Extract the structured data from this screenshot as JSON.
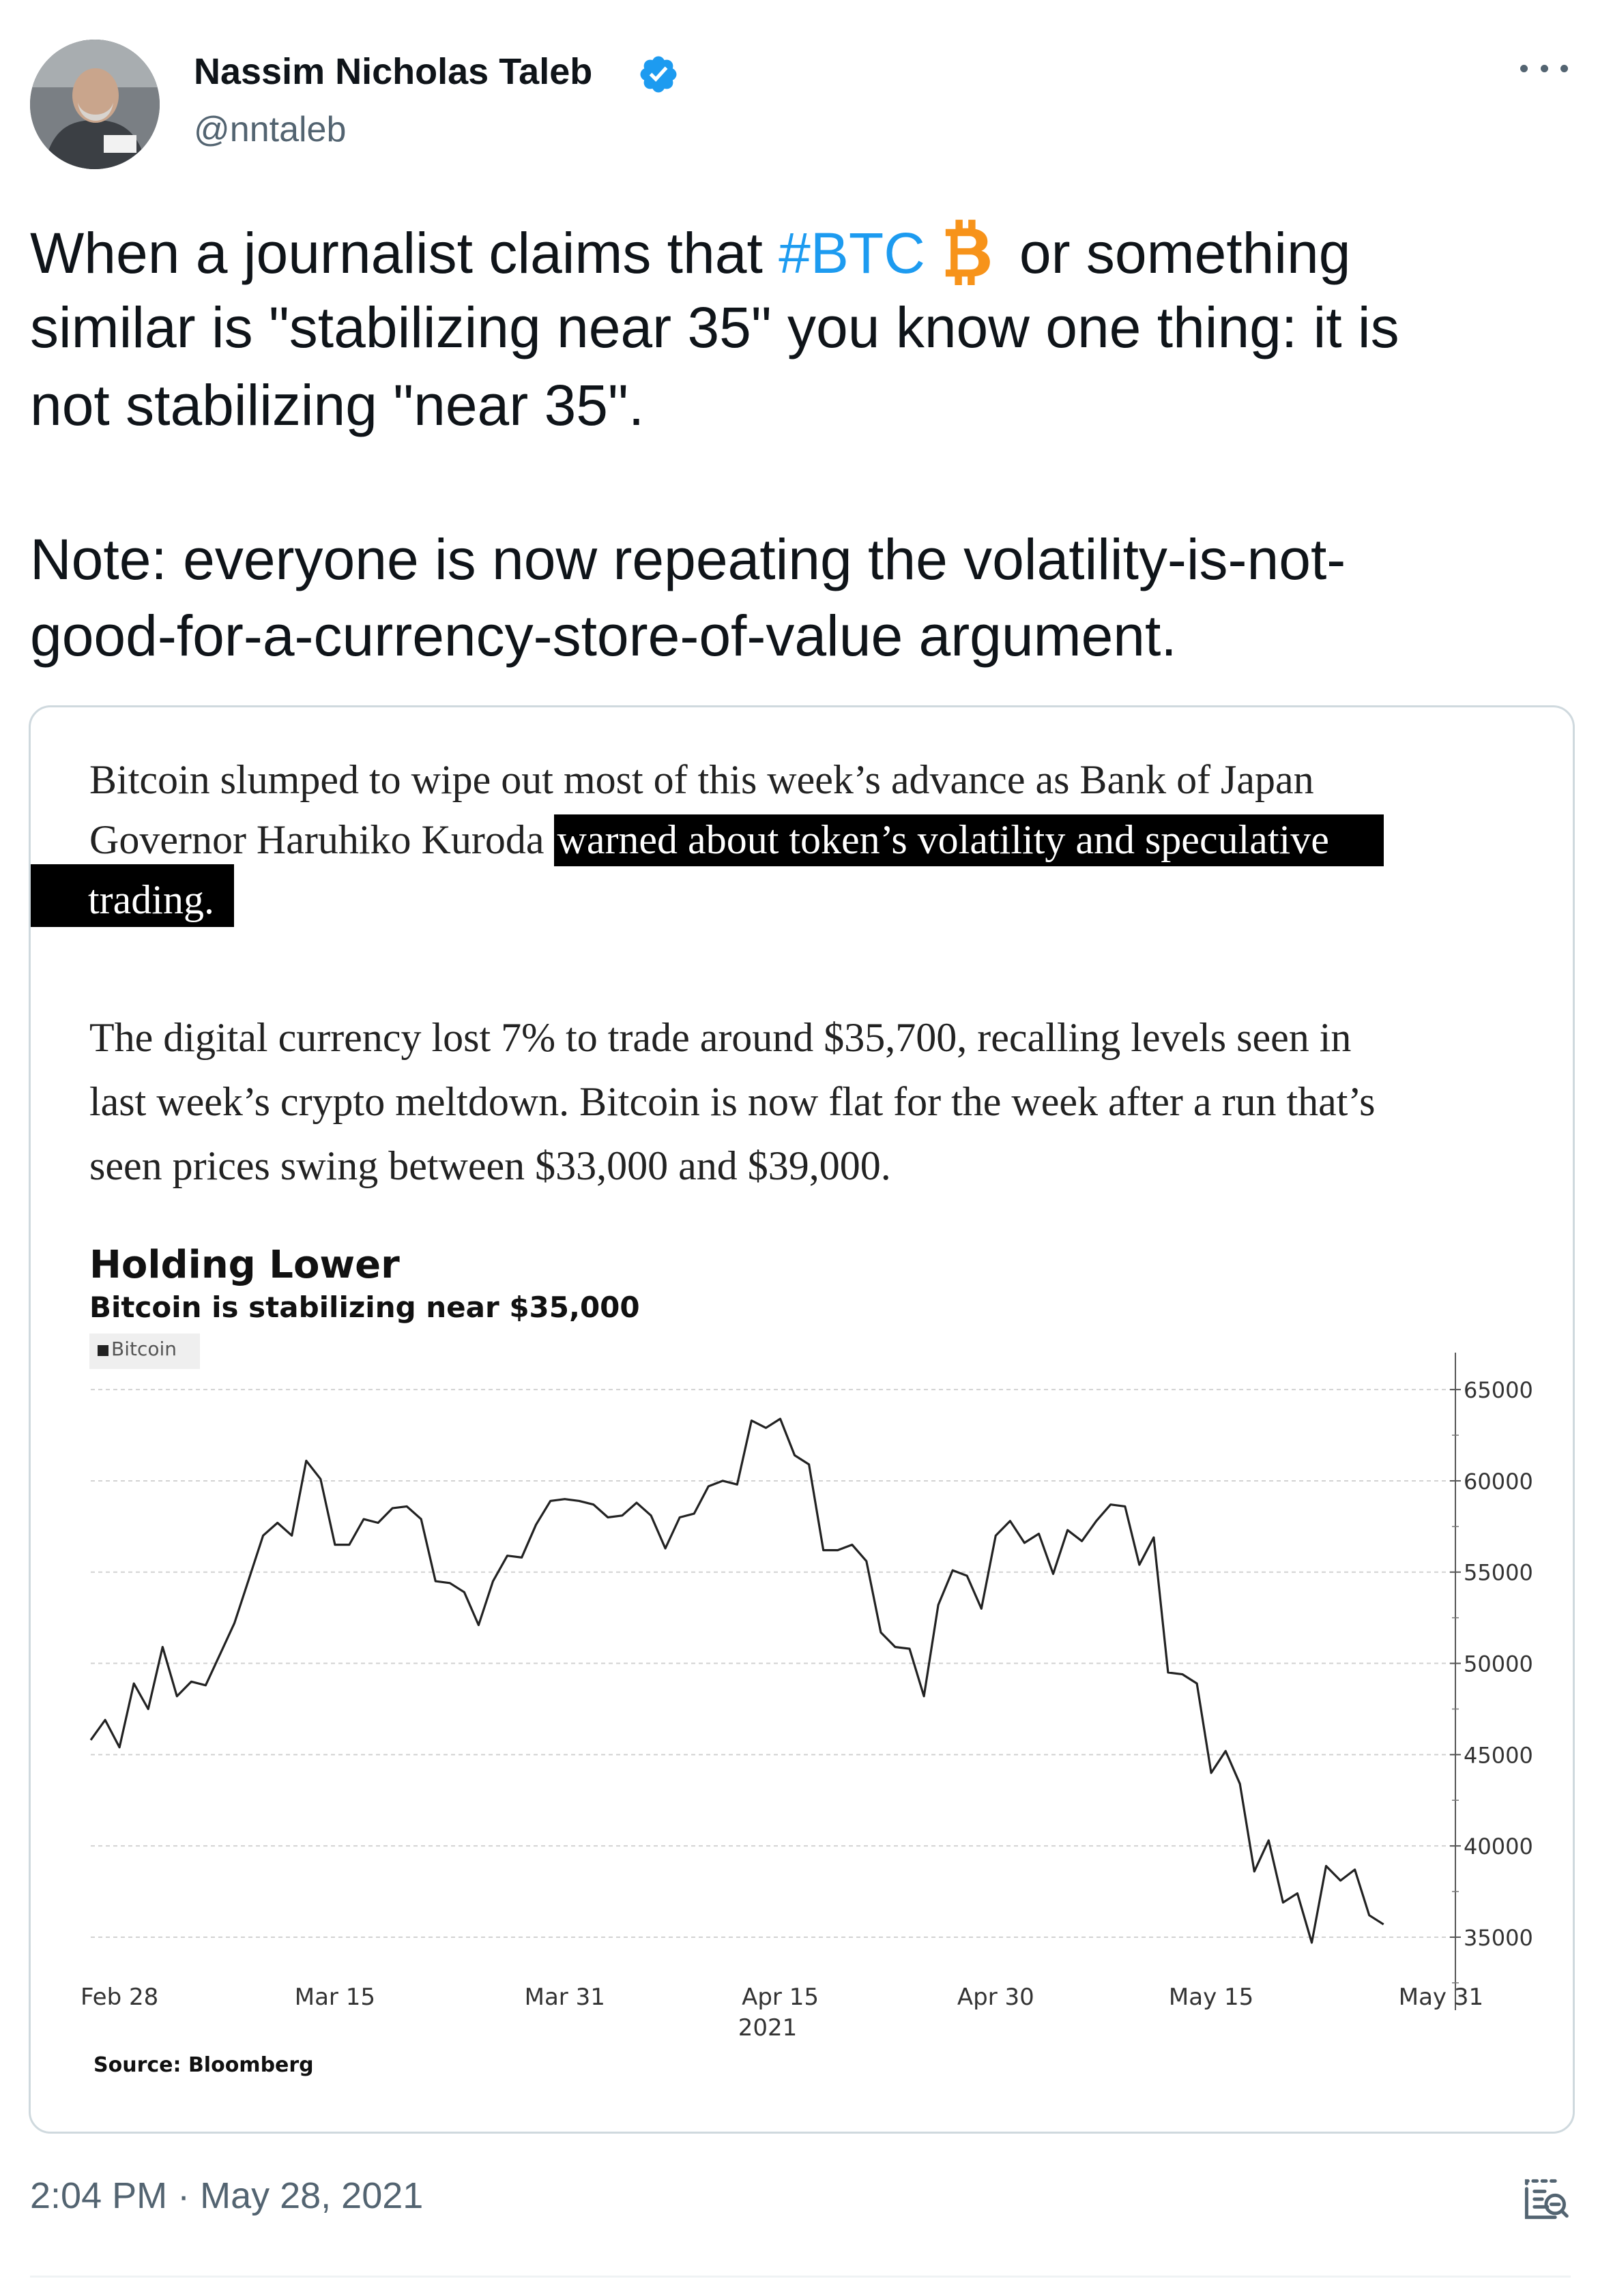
{
  "author": {
    "name": "Nassim Nicholas Taleb",
    "handle": "@nntaleb",
    "verified": true,
    "avatar": "avatar-photo"
  },
  "tweet": {
    "line1_before": "When a journalist claims that ",
    "hashtag": "#BTC",
    "line1_after": "or something",
    "line2": "similar is \"stabilizing near 35\" you know one thing: it is",
    "line3": "not stabilizing \"near 35\".",
    "line4": "Note: everyone is now repeating the volatility-is-not-",
    "line5": "good-for-a-currency-store-of-value argument."
  },
  "article": {
    "p1_line1": "Bitcoin slumped to wipe out most of this week’s advance as Bank of Japan",
    "p1_line2_plain": "Governor Haruhiko Kuroda ",
    "p1_line2_highlight": "warned about token’s volatility and speculative",
    "p1_line3_highlight": "trading.",
    "p2_line1": "The digital currency lost 7% to trade around $35,700, recalling levels seen in",
    "p2_line2": "last week’s crypto meltdown. Bitcoin is now flat for the week after a run that’s",
    "p2_line3": "seen prices swing between $33,000 and $39,000."
  },
  "chart_data": {
    "type": "line",
    "title": "Holding Lower",
    "subtitle": "Bitcoin is stabilizing near $35,000",
    "source": "Source: Bloomberg",
    "year_label": "2021",
    "legend": [
      "Bitcoin"
    ],
    "legend_position": "top-left",
    "y_axis_side": "right",
    "ylim": [
      31000,
      66500
    ],
    "y_ticks": [
      35000,
      40000,
      45000,
      50000,
      55000,
      60000,
      65000
    ],
    "x_tick_labels": [
      {
        "label": "Feb 28",
        "date": "2021-02-28"
      },
      {
        "label": "Mar 15",
        "date": "2021-03-15"
      },
      {
        "label": "Mar 31",
        "date": "2021-03-31"
      },
      {
        "label": "Apr 15",
        "date": "2021-04-15"
      },
      {
        "label": "Apr 30",
        "date": "2021-04-30"
      },
      {
        "label": "May 15",
        "date": "2021-05-15"
      },
      {
        "label": "May 31",
        "date": "2021-05-31"
      }
    ],
    "grid": "horizontal",
    "series": [
      {
        "name": "Bitcoin",
        "color": "#222222",
        "points": [
          [
            "2021-02-26",
            45800
          ],
          [
            "2021-02-27",
            46900
          ],
          [
            "2021-02-28",
            45400
          ],
          [
            "2021-03-01",
            48900
          ],
          [
            "2021-03-02",
            47500
          ],
          [
            "2021-03-03",
            50900
          ],
          [
            "2021-03-04",
            48200
          ],
          [
            "2021-03-05",
            49000
          ],
          [
            "2021-03-06",
            48800
          ],
          [
            "2021-03-07",
            50500
          ],
          [
            "2021-03-08",
            52200
          ],
          [
            "2021-03-09",
            54600
          ],
          [
            "2021-03-10",
            57000
          ],
          [
            "2021-03-11",
            57700
          ],
          [
            "2021-03-12",
            57000
          ],
          [
            "2021-03-13",
            61100
          ],
          [
            "2021-03-14",
            60100
          ],
          [
            "2021-03-15",
            56500
          ],
          [
            "2021-03-16",
            56500
          ],
          [
            "2021-03-17",
            57900
          ],
          [
            "2021-03-18",
            57700
          ],
          [
            "2021-03-19",
            58500
          ],
          [
            "2021-03-20",
            58600
          ],
          [
            "2021-03-21",
            57900
          ],
          [
            "2021-03-22",
            54500
          ],
          [
            "2021-03-23",
            54400
          ],
          [
            "2021-03-24",
            53900
          ],
          [
            "2021-03-25",
            52100
          ],
          [
            "2021-03-26",
            54500
          ],
          [
            "2021-03-27",
            55900
          ],
          [
            "2021-03-28",
            55800
          ],
          [
            "2021-03-29",
            57600
          ],
          [
            "2021-03-30",
            58900
          ],
          [
            "2021-03-31",
            59000
          ],
          [
            "2021-04-01",
            58900
          ],
          [
            "2021-04-02",
            58700
          ],
          [
            "2021-04-03",
            58000
          ],
          [
            "2021-04-04",
            58100
          ],
          [
            "2021-04-05",
            58800
          ],
          [
            "2021-04-06",
            58100
          ],
          [
            "2021-04-07",
            56300
          ],
          [
            "2021-04-08",
            58000
          ],
          [
            "2021-04-09",
            58200
          ],
          [
            "2021-04-10",
            59700
          ],
          [
            "2021-04-11",
            60000
          ],
          [
            "2021-04-12",
            59800
          ],
          [
            "2021-04-13",
            63300
          ],
          [
            "2021-04-14",
            62900
          ],
          [
            "2021-04-15",
            63400
          ],
          [
            "2021-04-16",
            61400
          ],
          [
            "2021-04-17",
            60900
          ],
          [
            "2021-04-18",
            56200
          ],
          [
            "2021-04-19",
            56200
          ],
          [
            "2021-04-20",
            56500
          ],
          [
            "2021-04-21",
            55600
          ],
          [
            "2021-04-22",
            51700
          ],
          [
            "2021-04-23",
            50900
          ],
          [
            "2021-04-24",
            50800
          ],
          [
            "2021-04-25",
            48200
          ],
          [
            "2021-04-26",
            53200
          ],
          [
            "2021-04-27",
            55100
          ],
          [
            "2021-04-28",
            54800
          ],
          [
            "2021-04-29",
            53000
          ],
          [
            "2021-04-30",
            57000
          ],
          [
            "2021-05-01",
            57800
          ],
          [
            "2021-05-02",
            56600
          ],
          [
            "2021-05-03",
            57100
          ],
          [
            "2021-05-04",
            54900
          ],
          [
            "2021-05-05",
            57300
          ],
          [
            "2021-05-06",
            56700
          ],
          [
            "2021-05-07",
            57800
          ],
          [
            "2021-05-08",
            58700
          ],
          [
            "2021-05-09",
            58600
          ],
          [
            "2021-05-10",
            55400
          ],
          [
            "2021-05-11",
            56900
          ],
          [
            "2021-05-12",
            49500
          ],
          [
            "2021-05-13",
            49400
          ],
          [
            "2021-05-14",
            48900
          ],
          [
            "2021-05-15",
            44000
          ],
          [
            "2021-05-16",
            45200
          ],
          [
            "2021-05-17",
            43400
          ],
          [
            "2021-05-18",
            38600
          ],
          [
            "2021-05-19",
            40300
          ],
          [
            "2021-05-20",
            36900
          ],
          [
            "2021-05-21",
            37400
          ],
          [
            "2021-05-22",
            34700
          ],
          [
            "2021-05-23",
            38900
          ],
          [
            "2021-05-24",
            38100
          ],
          [
            "2021-05-25",
            38700
          ],
          [
            "2021-05-26",
            36200
          ],
          [
            "2021-05-27",
            35700
          ]
        ]
      }
    ]
  },
  "footer": {
    "timestamp": "2:04 PM · May 28, 2021"
  },
  "icons": {
    "verified": "verified-badge-icon",
    "more": "more-horizontal-icon",
    "bitcoin": "bitcoin-emoji-icon",
    "activity": "view-tweet-activity-icon"
  },
  "colors": {
    "hashtag": "#1d9bf0",
    "verified": "#1d9bf0",
    "bitcoin": "#f7931a",
    "secondary_text": "#536471",
    "card_border": "#cfd9de"
  }
}
